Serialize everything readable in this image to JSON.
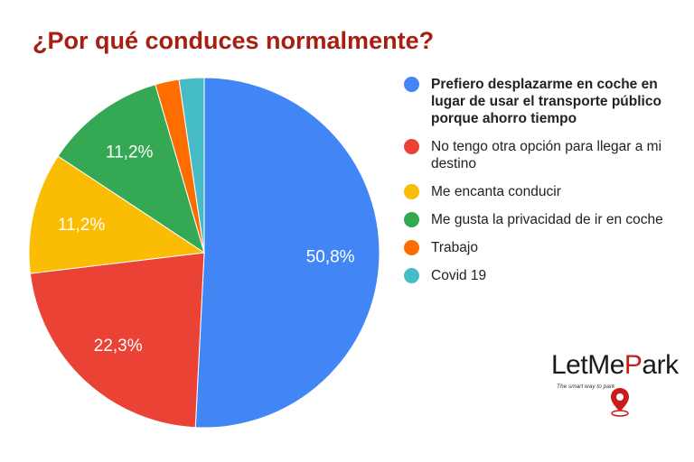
{
  "chart_data": {
    "type": "pie",
    "title": "¿Por qué conduces normalmente?",
    "slices": [
      {
        "label": "Prefiero desplazarme en coche en lugar de usar el transporte público porque ahorro tiempo",
        "value": 50.8,
        "display": "50,8%",
        "color": "#4285f4",
        "bold": true
      },
      {
        "label": "No tengo otra opción para llegar a mi destino",
        "value": 22.3,
        "display": "22,3%",
        "color": "#ea4335",
        "bold": false
      },
      {
        "label": "Me encanta conducir",
        "value": 11.2,
        "display": "11,2%",
        "color": "#fbbc04",
        "bold": false
      },
      {
        "label": "Me gusta la privacidad de ir en coche",
        "value": 11.2,
        "display": "11,2%",
        "color": "#34a853",
        "bold": false
      },
      {
        "label": "Trabajo",
        "value": 2.2,
        "display": "",
        "color": "#ff6d01",
        "bold": false
      },
      {
        "label": "Covid 19",
        "value": 2.3,
        "display": "",
        "color": "#46bdc6",
        "bold": false
      }
    ],
    "legend_position": "right"
  },
  "logo": {
    "text_before": "LetMe",
    "text_accent": "P",
    "text_after": "ark",
    "tagline": "The smart way to park",
    "icon": "map-pin-icon"
  }
}
